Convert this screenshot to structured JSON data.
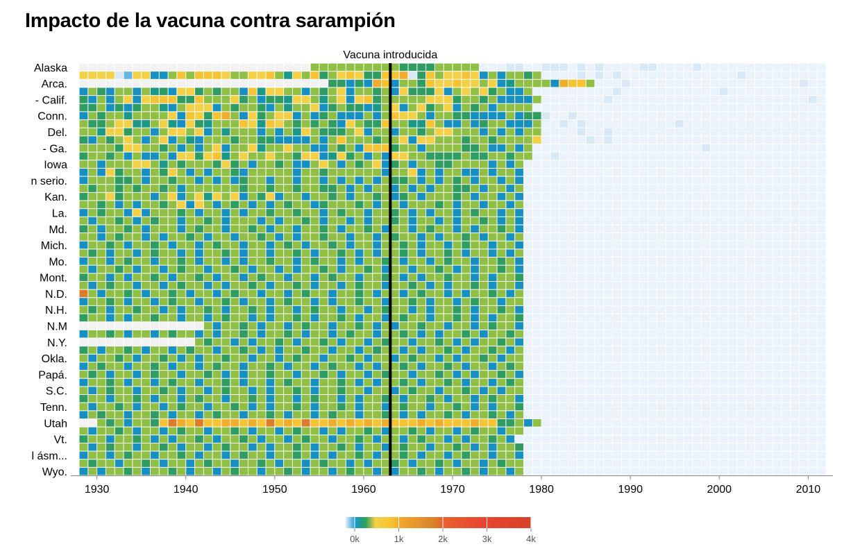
{
  "chart_data": {
    "type": "heatmap",
    "title": "Impacto de la vacuna contra sarampión",
    "annotation": {
      "text": "Vacuna introducida",
      "year": 1963
    },
    "x": {
      "min": 1928,
      "max": 2012,
      "ticks": [
        1930,
        1940,
        1950,
        1960,
        1970,
        1980,
        1990,
        2000,
        2010
      ]
    },
    "rows_total": 51,
    "y_labels": [
      "Alaska",
      "Arca.",
      "- Calif.",
      "Conn.",
      "Del.",
      "- Ga.",
      "Iowa",
      "n serio.",
      "Kan.",
      "La.",
      "Md.",
      "Mich.",
      "Mo.",
      "Mont.",
      "N.D.",
      "N.H.",
      "N.M",
      "N.Y.",
      "Okla.",
      "Papá.",
      "S.C.",
      "Tenn.",
      "Utah",
      "Vt.",
      "l ásm...",
      "Wyo."
    ],
    "y_label_rows": [
      0,
      2,
      4,
      6,
      8,
      10,
      12,
      14,
      16,
      18,
      20,
      22,
      24,
      26,
      28,
      30,
      32,
      34,
      36,
      38,
      40,
      42,
      44,
      46,
      48,
      50
    ],
    "legend": {
      "ticks": [
        {
          "label": "0k",
          "value": 0
        },
        {
          "label": "1k",
          "value": 1000
        },
        {
          "label": "2k",
          "value": 2000
        },
        {
          "label": "3k",
          "value": 3000
        },
        {
          "label": "4k",
          "value": 4000
        }
      ],
      "max": 4000,
      "colors": [
        "#e3eef9",
        "#7fc3e8",
        "#1f9ad6",
        "#1b9b8a",
        "#33a35c",
        "#f3d045",
        "#f6c432",
        "#f1a72b",
        "#e5922b",
        "#d98228",
        "#e7622c",
        "#e8452f",
        "#d5422a"
      ]
    },
    "colors": {
      "missing": "#f2f2f2",
      "scale": [
        "#eaf2fb",
        "#d7e8f7",
        "#c2dcf2",
        "#9ccbeb",
        "#65b6e3",
        "#2a9dd6",
        "#1590c1",
        "#1a9a86",
        "#2f9d62",
        "#8fbf45",
        "#f3d045",
        "#f6c432",
        "#f0ad2b",
        "#e6972b",
        "#db7c2a",
        "#e35a2c",
        "#e3452f",
        "#c93a29"
      ]
    },
    "rows": [
      "~~~~~~~~~~~~~~~~~~~~~~~~~~aaaaaaaaaa9999aaaaa1112211222121211112211112111111111111111111111",
      "bbbb25bb77acacccbaabbca8bac9abcb99ccd29cabbcb7a7aa9a1111212121111111111111211111111111111111",
      "~~~~~~~~~~~~~~~~~~~~~~~~~~~~99797dc7aa9cbbcbbab78aaaa7dcca111211111111111111111112111111111111",
      "7a97aa7a897bb9a9aa7c8bbaa7a9ab7aa9a7b999b7abab9a77a11111111121111111111121111111111111111111",
      "97a7ab7bccc99caaab9a7998bba8ab7bc9aaaaabbb9aa9a7777a1111111211111111111111111111112111111111",
      "99a7979aa87abbb7a9aa97a8aab79a9978ab7ab9ab7a9a7aaaa11111111111111111111111111111111111111111",
      "7a9aa8aaaab7cb9cda7b9abb7a79a777a7acbba7aa997777a799211211111111111111111111111111111111111",
      "a99abb88ab87b98aaacb8cba9a9a97ba99caa88ca77a79aa777a1121211111111112111111111111111111111111",
      "aa8bb9aa7abbab7a8aaa7a7a8ba999ab7aa7aa9abbaaa7a7a7aa1111211211111111111111111111111111111111",
      "97a9aba7ab7a87aaa9aa997777a7acaaa9aab7bbaaa9aa9aaaab1111121211111111111111111111111111111111",
      "aaaa9bbaa9a7a7ab7aab8aabaa77a9a7ccc9aa7aaaa99a77a7a11111111111111111112111111111111111111111",
      "9aa9a7a77a7bb9bc8abaabaa9bb78b9a7a7bbaa9999a99aa9aa1121111111111111111111111111111111111111",
      "aa7aaabba8a9aaa9b9a7aa9a77aba7a9ab79a7aa99aaaa7a7a1111111111111111111111111111111111111111",
      "7a7b9aa7a9ba7a7aa97aaaaa7aa9aaaaaa7aab7a7aa77a7aa71111111111111111111111111111111111111111",
      "7aaa99a7aa9aa7a7a79aa7aa7aa7a7a7a7a99a7a7a9a7aa7a7111111111111111111111111111111111111111111",
      "a9aa9a9aa9a7aaaaaa9aa9aa9aa99a7a7aa7a7a7aa99a7aa7a111111111111111111111111111111111111111111",
      "9aab9aaa7ab7ab8bab7a9b7aa7aa9a7aa9a79a7aaa9a7aa7a7111111111111111111111111111111111111111111",
      "aa9a7a7aa9ab7ba7a9a7a7a9aa79aaa9a7aa7aaa9a7aa7aa7a111111111111111111111111111111111111111111",
      "7a9aa7b7aaa9a7aa7a7aa9aa9aa7a9aa7aa9a7a7aa7a9aa7a711111111111111111111111111111111111111111",
      "a7aa9a7a9aa7aa9a7aaa7a7aa9a7aa7a7aa9a7aa7a7aa9a7a7111111111111111111111111111111111111111111",
      "9a7aa9a7aaa7a9aa7aa9a7aa7aa9a7aa9a7aa7a9aa7a7aa9a71111111111111111111111111111111111111111111",
      "aa7a9aa7a7aa9a7aa7aa9a7a7aa9aa7aa7a9aa7a7aa9a7aa7a111111111111111111111111111111111111111111",
      "7aa9a7aa9a7aa7a9aa7aa7a9a7aa9a7aa7aa9a7aa7a9aa7aa7111111111111111111111111111111111111111111",
      "a9a7aa7a9aa7a7aa9a7aa7aa9a7aa9a7a7aa9a7aa9a7aa7a7a111111111111111111111111111111111111111111",
      "7aa7a9aa7aa9a7aa7a7aa9aa7a9aa7a7aa9a7aa7a9aa7aa9a71111111111111111111111111111111111111111111",
      "a7aa9a7aa7a9aa7aa9a7aa7a7aa9a7aa9a7aa7aa9a7a7aa9a7111111111111111111111111111111111111111111",
      "9aa7a7aa9a7aa9a7aa7a9aa7aa7a9aa7aa9a7a7aa9aa7a7aa9111111111111111111111111111111111111111111",
      "a7a9aa7aa7a9aa7a7aa9a7aa9a7aa7a9aa7aa9a7a7aa9a7aa7111111111111111111111111111111111111111111",
      "fa7aa9a7aa9a7aa7a9aa7aa7a9aa7aa9a7aa7a9aa7a7aa9a7a11111111111111111111111111111111111111111",
      "7aa9a7aa7a9aa7aa9a7aa7a9aa7a7aa9aa7aa9a7aa7a9aa7aa1111111111111111111111111111111111111111111",
      "a9a7aa9aa7a7aa9a7aa9a7aa7a9aa7aa7a9aa7a7aa9a7aa9a7111111111111111111111111111111111111111111",
      "9aa7a7aa9aa7aa7a9aa7a7aa9a7aa9a7aa7a9aa7aa9a7a7aa9111111111111111111111111111111111111111111",
      "~~~~~~~~~~~~~~a7aa9a7aa7a9aa7aa9a7a7aa9aa7aa7a9aa711111111111111111111111111111111111111111",
      "7aa9a7aa7a9aa7a7aa9a7aa9a7aa7a9aa7aa9a7a7aa9a7aa9a111111111111111111111111111111111111111111",
      "~~~~~~~~~~~~~a9aa7a7aa9a7aa9a7aa7a9aa7aa9a7a7aa9a7111111111111111111111111111111111111111111",
      "9a7aa9a7aa7a9aa7aa9a7a7aa9aa7aa7a9aa7a7aa9a7aa9a7a111111111111111111111111111111111111111111",
      "a7aa9a7aa9a7a7aa9aa7aa7a9aa7aa9a7aa7a9aa7a7aa9a7aa111111111111111111111111111111111111111111",
      "7a9aa7aa9a7aa7a9aa7aa9a7aa7a9aa7a7aa9a7aa9a7aa7a9a111111111111111111111111111111111111111111",
      "a9a7aa7a9aa7aa9a7a7aa9aa7aa9a7aa7a9aa7aa9a7a7aa9a7111111111111111111111111111111111111111111",
      "7aa9a7aa7a9aa7aa9a7aa7a9aa7aa9a7a7aa9a7aa9a7aa7a9a111111111111111111111111111111111111111111",
      "a7a9aa7aa9a7aa7a9aa7a7aa9a7aa9aa7aa7a9aa7aa9a7a7aa111111111111111111111111111111111111111111",
      "9aa7aa9a7aa7a9aa7aa9a7aa7a9aa7a7aa9a7aa9a7aa7a9aa7111111111111111111111111111111111111111111",
      "a7aa9a7aa7a9aa7aa9a7a7aa9a7aa9a7aa7a9aa7aa9a7a7aa9111111111111111111111111111111111111111111",
      "7a9aa7aa9a7aa7a9aa7aa9a7aa7a9aa7aa9a7a7aa9a7aa9a7a111111111111111111111111111111111111111111",
      "~~a9a7aa9cfdcfccddcdcfcdcfccdcdcdcdcccdcdcccdcc99a7a11111111111111111111111111111111111111111",
      "a7aa9a7aa7a9aa7aa9a7aa7a9aa7a7aa9a7aa9a7aa7a9aa7aa111111111111111111111111111111111111111111",
      "9aa7aa9a7a7aa9a7aa9a7aa7a9aa7aa9a7aa7a9aa7a7aa9a71111111111111111111111111111111111111111111",
      "a7a9aa7aa9a7aa7a9aa7a7aa9a7aa9a7aa7a9aa7aa9a7a7aa9111111111111111111111111111111111111111111",
      "7aa7a9aa7aa9a7aa7a9aa7aa9a7a7aa9a7aa9a7aa7a9aa7aa7111111111111111111111111111111111111111111",
      "a9aa7aa9a7aa7a9aa7aa9a7aa7a9aa7a7aa9a7aa9a7aa7a9aa111111111111111111111111111111111111111111",
      "7a7aa9a7aa9a7aa7a9aa7aa9a7aa7a9aa7a7aa9a7aa9a7aa7a111111111111111111111111111111111111111111"
    ]
  }
}
